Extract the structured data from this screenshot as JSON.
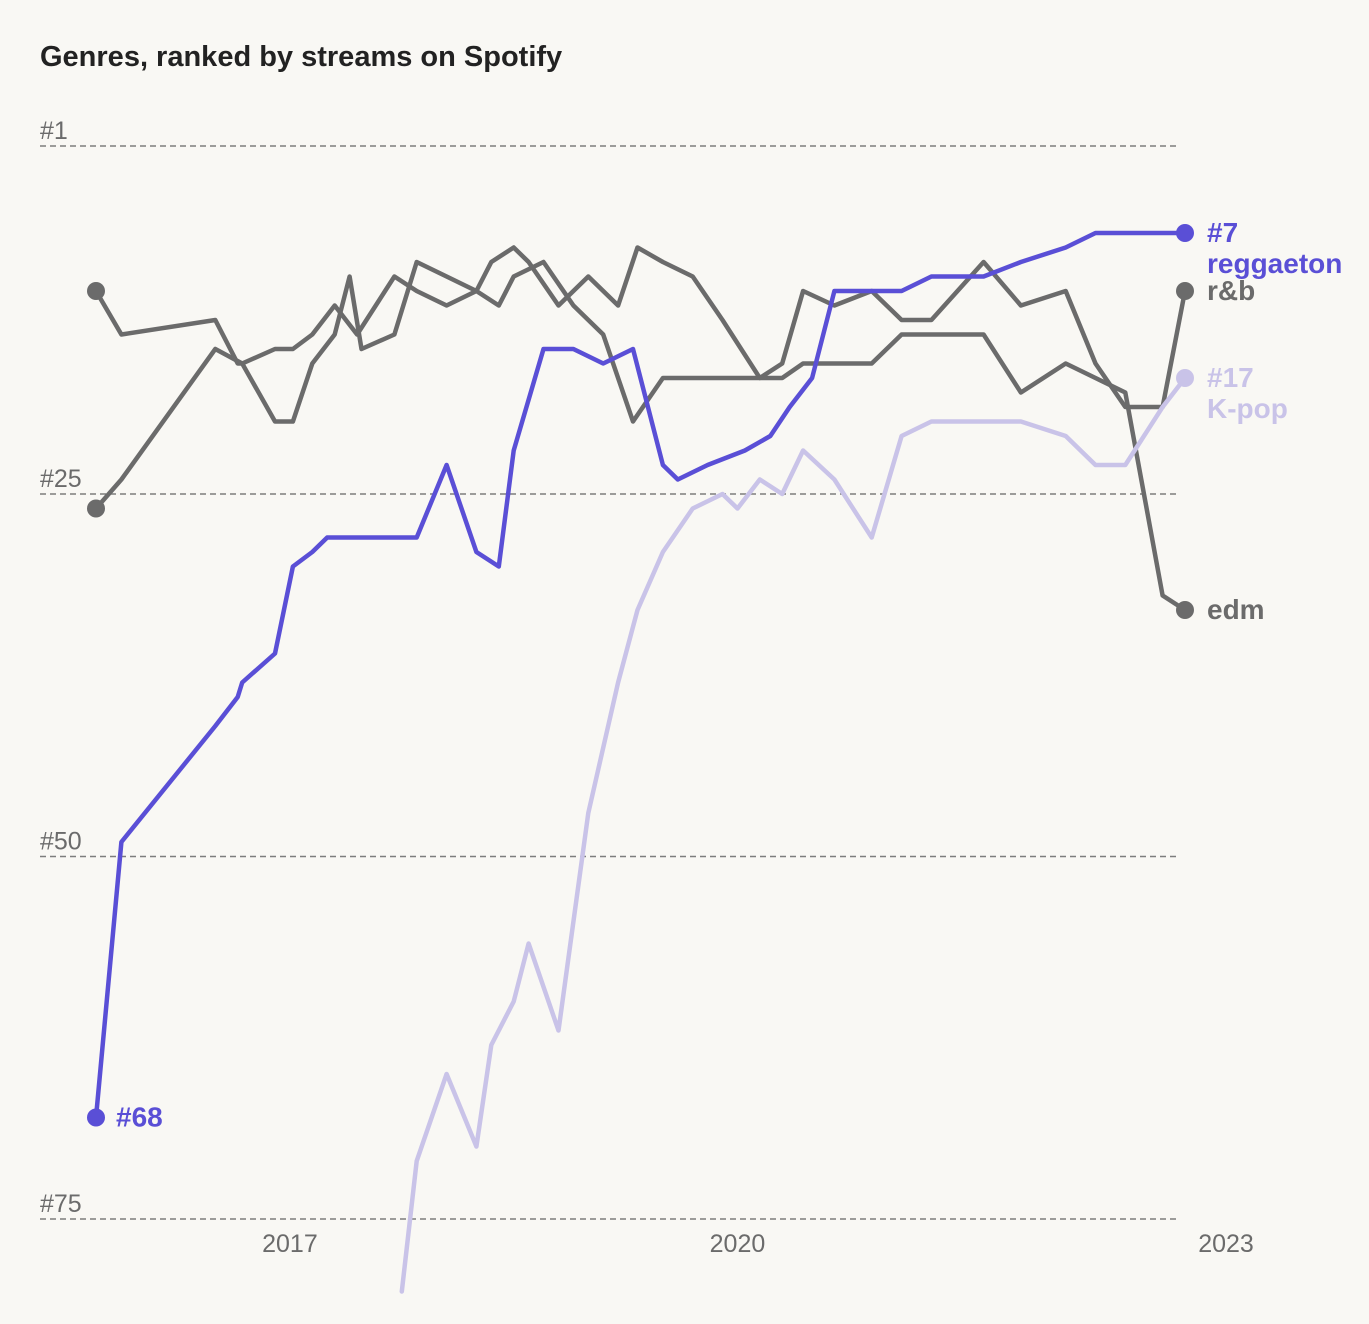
{
  "chart_data": {
    "type": "line",
    "title": "Genres, ranked by streams on Spotify",
    "xlabel": "",
    "ylabel": "",
    "y_reversed": true,
    "ylim": [
      1,
      75
    ],
    "xlim": [
      2015.7,
      2023.0
    ],
    "y_ticks": [
      {
        "value": 1,
        "label": "#1"
      },
      {
        "value": 25,
        "label": "#25"
      },
      {
        "value": 50,
        "label": "#50"
      },
      {
        "value": 75,
        "label": "#75"
      }
    ],
    "x_ticks": [
      {
        "value": 2017,
        "label": "2017"
      },
      {
        "value": 2020,
        "label": "2020"
      },
      {
        "value": 2023,
        "label": "2023"
      }
    ],
    "grid": true,
    "series": [
      {
        "name": "r&b",
        "color": "#6b6b6b",
        "x": [
          2015.7,
          2015.87,
          2016.5,
          2016.65,
          2016.68,
          2016.9,
          2017.02,
          2017.15,
          2017.3,
          2017.4,
          2017.48,
          2017.7,
          2017.85,
          2018.05,
          2018.25,
          2018.35,
          2018.5,
          2018.6,
          2018.8,
          2019.0,
          2019.2,
          2019.33,
          2019.5,
          2019.7,
          2019.9,
          2020.15,
          2020.3,
          2020.44,
          2020.65,
          2020.9,
          2021.1,
          2021.3,
          2021.65,
          2021.9,
          2022.2,
          2022.4,
          2022.6,
          2022.85,
          2023.0
        ],
        "y": [
          11,
          14,
          13,
          16,
          16,
          20,
          20,
          16,
          14,
          10,
          15,
          14,
          9,
          10,
          11,
          9,
          8,
          9,
          12,
          10,
          12,
          8,
          9,
          10,
          13,
          17,
          16,
          11,
          12,
          11,
          13,
          13,
          9,
          12,
          11,
          16,
          19,
          19,
          11
        ],
        "end_label": "r&b",
        "end_rank": 11
      },
      {
        "name": "edm",
        "color": "#6b6b6b",
        "x": [
          2015.7,
          2015.87,
          2016.5,
          2016.68,
          2016.9,
          2017.02,
          2017.15,
          2017.3,
          2017.45,
          2017.7,
          2017.85,
          2018.05,
          2018.25,
          2018.4,
          2018.5,
          2018.7,
          2018.9,
          2019.1,
          2019.3,
          2019.5,
          2019.7,
          2019.9,
          2020.15,
          2020.3,
          2020.44,
          2020.65,
          2020.9,
          2021.1,
          2021.3,
          2021.65,
          2021.9,
          2022.2,
          2022.4,
          2022.6,
          2022.85,
          2023.0
        ],
        "y": [
          26,
          24,
          15,
          16,
          15,
          15,
          14,
          12,
          14,
          10,
          11,
          12,
          11,
          12,
          10,
          9,
          12,
          14,
          20,
          17,
          17,
          17,
          17,
          17,
          16,
          16,
          16,
          14,
          14,
          14,
          18,
          16,
          17,
          18,
          32,
          33
        ],
        "end_label": "edm",
        "end_rank": 33
      },
      {
        "name": "K-pop",
        "color": "#c9c3e8",
        "x": [
          2017.75,
          2017.85,
          2018.05,
          2018.25,
          2018.35,
          2018.5,
          2018.6,
          2018.8,
          2019.0,
          2019.2,
          2019.33,
          2019.5,
          2019.7,
          2019.9,
          2020.0,
          2020.15,
          2020.3,
          2020.44,
          2020.65,
          2020.9,
          2021.1,
          2021.3,
          2021.65,
          2021.9,
          2022.2,
          2022.4,
          2022.6,
          2022.85,
          2023.0
        ],
        "y": [
          80,
          71,
          65,
          70,
          63,
          60,
          56,
          62,
          47,
          38,
          33,
          29,
          26,
          25,
          26,
          24,
          25,
          22,
          24,
          28,
          21,
          20,
          20,
          20,
          21,
          23,
          23,
          19,
          17
        ],
        "end_label": "K-pop",
        "end_rank": 17,
        "end_rank_label": "#17"
      },
      {
        "name": "reggaeton",
        "color": "#5a4fd6",
        "x": [
          2015.7,
          2015.87,
          2016.5,
          2016.65,
          2016.68,
          2016.9,
          2017.02,
          2017.15,
          2017.25,
          2017.5,
          2017.6,
          2017.85,
          2018.05,
          2018.25,
          2018.4,
          2018.5,
          2018.7,
          2018.9,
          2019.1,
          2019.3,
          2019.5,
          2019.6,
          2019.8,
          2020.05,
          2020.22,
          2020.35,
          2020.5,
          2020.65,
          2020.9,
          2021.1,
          2021.3,
          2021.65,
          2021.9,
          2022.2,
          2022.4,
          2022.6,
          2022.85,
          2023.0
        ],
        "y": [
          68,
          49,
          41,
          39,
          38,
          36,
          30,
          29,
          28,
          28,
          28,
          28,
          23,
          29,
          30,
          22,
          15,
          15,
          16,
          15,
          23,
          24,
          23,
          22,
          21,
          19,
          17,
          11,
          11,
          11,
          10,
          10,
          9,
          8,
          7,
          7,
          7,
          7
        ],
        "end_label": "reggaeton",
        "end_rank": 7,
        "end_rank_label": "#7",
        "start_rank_label": "#68"
      }
    ]
  }
}
